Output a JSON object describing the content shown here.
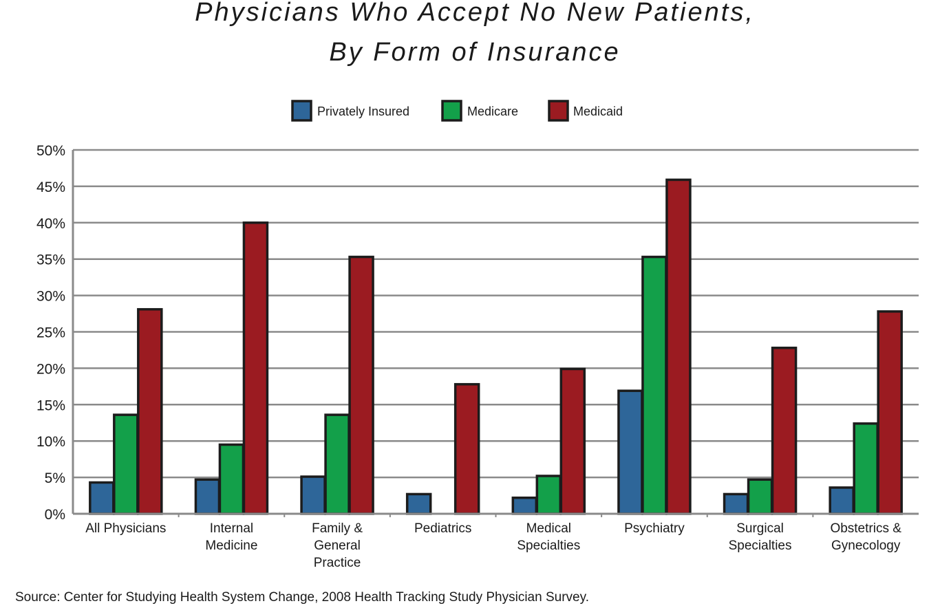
{
  "chart_data": {
    "type": "bar",
    "title": "Physicians Who Accept No New Patients,",
    "subtitle": "By Form of Insurance",
    "categories": [
      [
        "All Physicians"
      ],
      [
        "Internal",
        "Medicine"
      ],
      [
        "Family &",
        "General",
        "Practice"
      ],
      [
        "Pediatrics"
      ],
      [
        "Medical",
        "Specialties"
      ],
      [
        "Psychiatry"
      ],
      [
        "Surgical",
        "Specialties"
      ],
      [
        "Obstetrics &",
        "Gynecology"
      ]
    ],
    "series": [
      {
        "name": "Privately Insured",
        "color": "#2e6699",
        "values": [
          4.3,
          4.7,
          5.1,
          2.7,
          2.2,
          16.9,
          2.7,
          3.6
        ]
      },
      {
        "name": "Medicare",
        "color": "#13a04a",
        "values": [
          13.6,
          9.5,
          13.6,
          null,
          5.2,
          35.3,
          4.7,
          12.4
        ]
      },
      {
        "name": "Medicaid",
        "color": "#9b1b21",
        "values": [
          28.1,
          40.0,
          35.3,
          17.8,
          19.9,
          45.9,
          22.8,
          27.8
        ]
      }
    ],
    "y_ticks": [
      "0%",
      "5%",
      "10%",
      "15%",
      "20%",
      "25%",
      "30%",
      "35%",
      "40%",
      "45%",
      "50%"
    ],
    "ylim": [
      0,
      50
    ],
    "grid": true,
    "legend_position": "top-center",
    "source": "Source: Center for Studying Health System Change, 2008 Health Tracking Study Physician Survey."
  }
}
